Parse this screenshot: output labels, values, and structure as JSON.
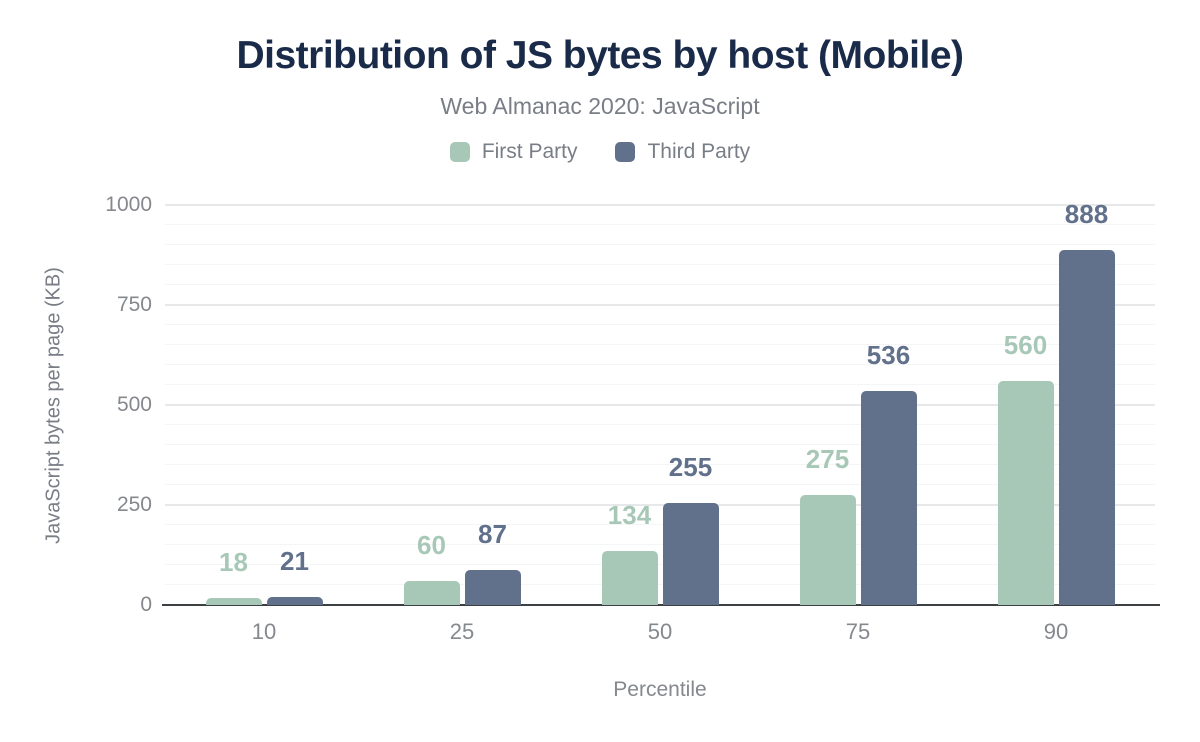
{
  "chart_data": {
    "type": "bar",
    "title": "Distribution of JS bytes by host (Mobile)",
    "subtitle": "Web Almanac 2020: JavaScript",
    "xlabel": "Percentile",
    "ylabel": "JavaScript bytes per page (KB)",
    "categories": [
      "10",
      "25",
      "50",
      "75",
      "90"
    ],
    "series": [
      {
        "name": "First Party",
        "color": "#a8c8b7",
        "values": [
          18,
          60,
          134,
          275,
          560
        ]
      },
      {
        "name": "Third Party",
        "color": "#61708b",
        "values": [
          21,
          87,
          255,
          536,
          888
        ]
      }
    ],
    "ylim": [
      0,
      1000
    ],
    "yticks": [
      0,
      250,
      500,
      750,
      1000
    ],
    "minor_grid_step": 50,
    "grid": "horizontal-major-and-minor",
    "legend_position": "top",
    "data_labels_shown": true
  },
  "colors": {
    "background": "#ffffff",
    "title_text": "#1a2b49",
    "muted_text": "#797e86",
    "tick_text": "#85888d",
    "major_gridline": "#e6e8ea",
    "minor_gridline": "#f4f5f6",
    "axis_line": "#3d4043",
    "first_party": "#a8c8b7",
    "third_party": "#61708b"
  }
}
